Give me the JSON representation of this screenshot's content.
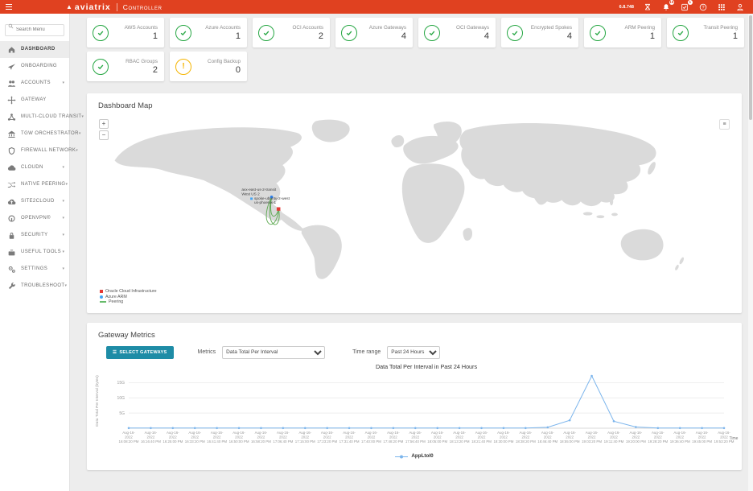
{
  "header": {
    "brand": "aviatrix",
    "product": "Controller",
    "version": "6.8.748",
    "icons": [
      {
        "name": "hourglass-icon",
        "badge": ""
      },
      {
        "name": "bell-icon",
        "badge": "15"
      },
      {
        "name": "tasks-icon",
        "badge": "1"
      },
      {
        "name": "help-icon",
        "badge": ""
      },
      {
        "name": "apps-grid-icon",
        "badge": ""
      },
      {
        "name": "user-icon",
        "badge": ""
      }
    ]
  },
  "sidebar": {
    "search_placeholder": "Search Menu",
    "items": [
      {
        "label": "DASHBOARD",
        "icon": "home-icon",
        "caret": false,
        "active": true
      },
      {
        "label": "ONBOARDING",
        "icon": "plane-icon",
        "caret": false,
        "active": false
      },
      {
        "label": "ACCOUNTS",
        "icon": "users-icon",
        "caret": true,
        "active": false
      },
      {
        "label": "GATEWAY",
        "icon": "gateway-icon",
        "caret": false,
        "active": false
      },
      {
        "label": "MULTI-CLOUD TRANSIT",
        "icon": "transit-icon",
        "caret": true,
        "active": false
      },
      {
        "label": "TGW ORCHESTRATOR",
        "icon": "bank-icon",
        "caret": true,
        "active": false
      },
      {
        "label": "FIREWALL NETWORK",
        "icon": "shield-icon",
        "caret": true,
        "active": false
      },
      {
        "label": "CLOUDN",
        "icon": "cloud-icon",
        "caret": true,
        "active": false
      },
      {
        "label": "NATIVE PEERING",
        "icon": "shuffle-icon",
        "caret": true,
        "active": false
      },
      {
        "label": "SITE2CLOUD",
        "icon": "cloud-upload-icon",
        "caret": true,
        "active": false
      },
      {
        "label": "OPENVPN®",
        "icon": "openvpn-icon",
        "caret": true,
        "active": false
      },
      {
        "label": "SECURITY",
        "icon": "lock-icon",
        "caret": true,
        "active": false
      },
      {
        "label": "USEFUL TOOLS",
        "icon": "toolbox-icon",
        "caret": true,
        "active": false
      },
      {
        "label": "SETTINGS",
        "icon": "gears-icon",
        "caret": true,
        "active": false
      },
      {
        "label": "TROUBLESHOOT",
        "icon": "wrench-icon",
        "caret": true,
        "active": false
      }
    ]
  },
  "status_cards": [
    {
      "label": "AWS Accounts",
      "value": "1",
      "status": "ok"
    },
    {
      "label": "Azure Accounts",
      "value": "1",
      "status": "ok"
    },
    {
      "label": "OCI Accounts",
      "value": "2",
      "status": "ok"
    },
    {
      "label": "Azure Gateways",
      "value": "4",
      "status": "ok"
    },
    {
      "label": "OCI Gateways",
      "value": "4",
      "status": "ok"
    },
    {
      "label": "Encrypted Spokes",
      "value": "4",
      "status": "ok"
    },
    {
      "label": "ARM Peering",
      "value": "1",
      "status": "ok"
    },
    {
      "label": "Transit Peering",
      "value": "1",
      "status": "ok"
    },
    {
      "label": "RBAC Groups",
      "value": "2",
      "status": "ok"
    },
    {
      "label": "Config Backup",
      "value": "0",
      "status": "warning"
    }
  ],
  "map": {
    "title": "Dashboard Map",
    "zoom_in_label": "+",
    "zoom_out_label": "−",
    "export_icon": "≡",
    "gateway_labels": [
      {
        "lines": [
          "avx-east-us-2-transit",
          "West US 2"
        ]
      },
      {
        "lines": [
          "spoke-ubuntu-2-west",
          "us-phoenix-1"
        ]
      }
    ],
    "legend": [
      {
        "label": "Oracle Cloud Infrastructure",
        "color": "#e53935",
        "marker": "square"
      },
      {
        "label": "Azure ARM",
        "color": "#42a5f5",
        "marker": "circle"
      },
      {
        "label": "Peering",
        "color": "#66bb6a",
        "marker": "line"
      }
    ]
  },
  "metrics": {
    "title": "Gateway Metrics",
    "select_button_icon": "☰",
    "select_button_label": "SELECT GATEWAYS",
    "metrics_label": "Metrics",
    "metrics_value": "Data Total Per Interval",
    "timerange_label": "Time range",
    "timerange_value": "Past 24 Hours"
  },
  "chart_data": {
    "type": "line",
    "title": "Data Total Per Interval in Past 24 Hours",
    "xlabel": "Time",
    "ylabel": "Data Total Per Interval (bytes)",
    "ylim": [
      0,
      18
    ],
    "grid": true,
    "legend_position": "bottom",
    "ytick_values": [
      5,
      10,
      15
    ],
    "ytick_labels": [
      "5G",
      "10G",
      "15G"
    ],
    "x_date_line1": "Aug-16-",
    "x_date_line2": "2022",
    "x_times": [
      "16:08:20 PM",
      "16:16:40 PM",
      "16:25:00 PM",
      "16:33:20 PM",
      "16:41:40 PM",
      "16:50:00 PM",
      "16:58:20 PM",
      "17:06:40 PM",
      "17:15:00 PM",
      "17:23:20 PM",
      "17:31:40 PM",
      "17:40:00 PM",
      "17:48:20 PM",
      "17:56:40 PM",
      "18:05:00 PM",
      "18:13:20 PM",
      "18:21:40 PM",
      "18:30:00 PM",
      "18:38:20 PM",
      "18:46:40 PM",
      "18:55:00 PM",
      "19:03:20 PM",
      "19:11:40 PM",
      "19:20:00 PM",
      "19:28:20 PM",
      "19:36:40 PM",
      "19:45:00 PM",
      "19:53:20 PM"
    ],
    "series": [
      {
        "name": "AppLtoI0",
        "color": "#7cb5ec",
        "values": [
          0.05,
          0.05,
          0.05,
          0.05,
          0.05,
          0.05,
          0.05,
          0.05,
          0.05,
          0.05,
          0.05,
          0.05,
          0.05,
          0.05,
          0.05,
          0.05,
          0.05,
          0.05,
          0.05,
          0.3,
          2.6,
          17.2,
          2.3,
          0.4,
          0.05,
          0.05,
          0.05,
          0.05
        ]
      }
    ]
  },
  "colors": {
    "header": "#e04120",
    "accent_teal": "#1e8ca6",
    "ok_green": "#27a744",
    "warn_yellow": "#f5b400",
    "chart_line": "#7cb5ec",
    "map_land": "#dadada"
  }
}
